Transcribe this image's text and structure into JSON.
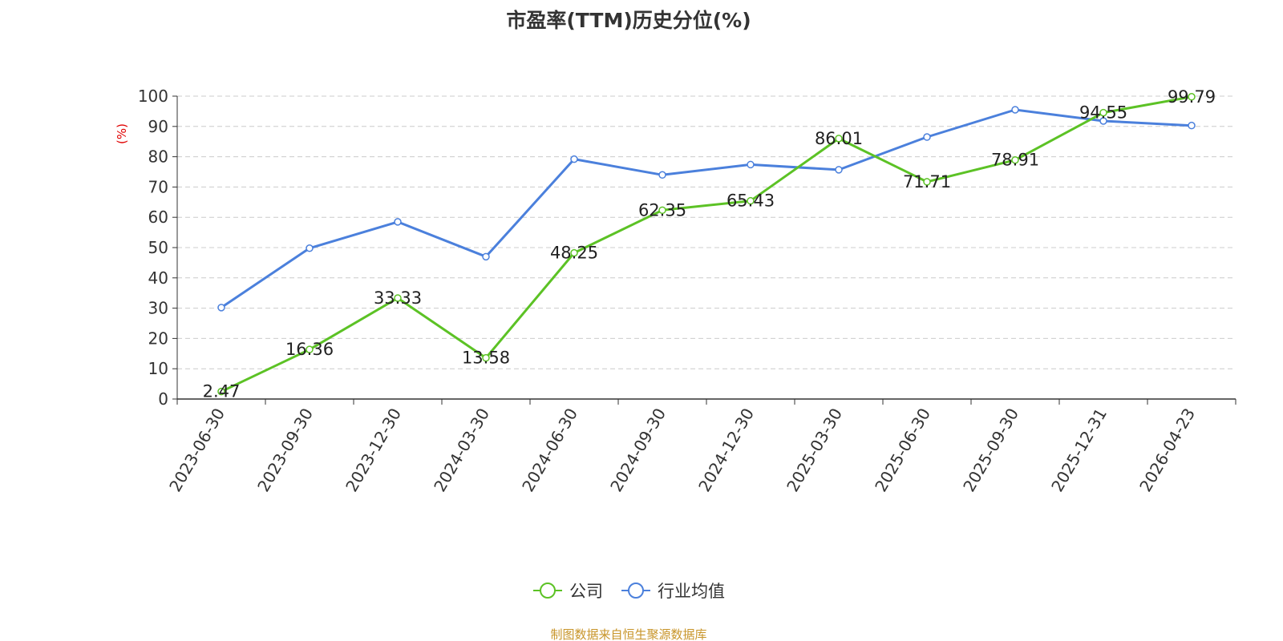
{
  "title": "市盈率(TTM)历史分位(%)",
  "y_unit": "(%)",
  "source": "制图数据来自恒生聚源数据库",
  "legend": {
    "items": [
      {
        "label": "公司",
        "color": "#5cc225"
      },
      {
        "label": "行业均值",
        "color": "#4b80dc"
      }
    ]
  },
  "chart_data": {
    "type": "line",
    "title": "市盈率(TTM)历史分位(%)",
    "ylabel": "(%)",
    "ylim": [
      0,
      100
    ],
    "yticks": [
      0,
      10,
      20,
      30,
      40,
      50,
      60,
      70,
      80,
      90,
      100
    ],
    "grid": true,
    "legend_position": "bottom",
    "categories": [
      "2023-06-30",
      "2023-09-30",
      "2023-12-30",
      "2024-03-30",
      "2024-06-30",
      "2024-09-30",
      "2024-12-30",
      "2025-03-30",
      "2025-06-30",
      "2025-09-30",
      "2025-12-31",
      "2026-04-23"
    ],
    "series": [
      {
        "name": "公司",
        "color": "#5cc225",
        "show_labels": true,
        "values": [
          2.47,
          16.36,
          33.33,
          13.58,
          48.25,
          62.35,
          65.43,
          86.01,
          71.71,
          78.91,
          94.55,
          99.79
        ]
      },
      {
        "name": "行业均值",
        "color": "#4b80dc",
        "show_labels": false,
        "values": [
          30.2,
          49.8,
          58.5,
          47.0,
          79.2,
          74.0,
          77.4,
          75.7,
          86.5,
          95.5,
          91.8,
          90.3
        ]
      }
    ]
  }
}
